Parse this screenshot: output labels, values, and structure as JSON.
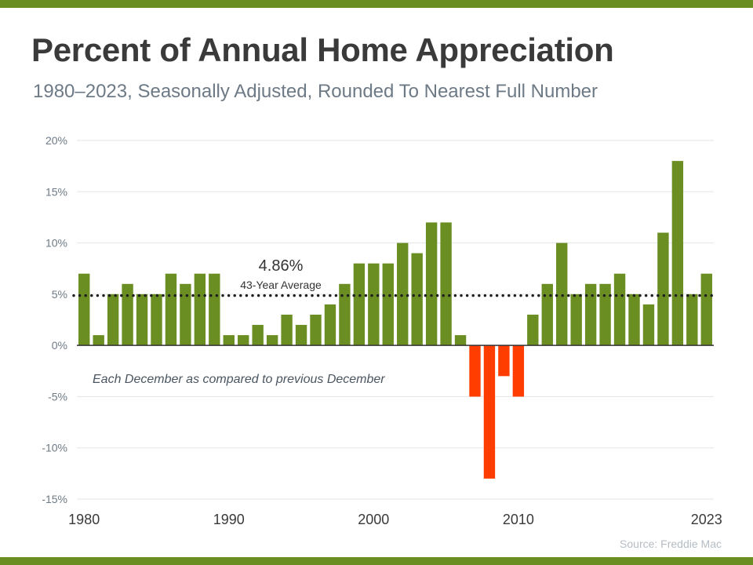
{
  "title": "Percent of Annual Home Appreciation",
  "subtitle": "1980–2023, Seasonally Adjusted, Rounded To Nearest Full Number",
  "source": "Source: Freddie Mac",
  "colors": {
    "brand": "#6b8e23",
    "positive": "#6b8e23",
    "negative": "#ff3d00"
  },
  "chart_data": {
    "type": "bar",
    "categories": [
      "1980",
      "1981",
      "1982",
      "1983",
      "1984",
      "1985",
      "1986",
      "1987",
      "1988",
      "1989",
      "1990",
      "1991",
      "1992",
      "1993",
      "1994",
      "1995",
      "1996",
      "1997",
      "1998",
      "1999",
      "2000",
      "2001",
      "2002",
      "2003",
      "2004",
      "2005",
      "2006",
      "2007",
      "2008",
      "2009",
      "2010",
      "2011",
      "2012",
      "2013",
      "2014",
      "2015",
      "2016",
      "2017",
      "2018",
      "2019",
      "2020",
      "2021",
      "2022",
      "2023"
    ],
    "values": [
      7,
      1,
      5,
      6,
      5,
      5,
      7,
      6,
      7,
      7,
      1,
      1,
      2,
      1,
      3,
      2,
      3,
      4,
      6,
      8,
      8,
      8,
      10,
      9,
      12,
      12,
      1,
      -5,
      -13,
      -3,
      -5,
      3,
      6,
      10,
      5,
      6,
      6,
      7,
      5,
      4,
      11,
      18,
      5,
      7
    ],
    "ylim": [
      -15,
      20
    ],
    "yticks": [
      -15,
      -10,
      -5,
      0,
      5,
      10,
      15,
      20
    ],
    "ytick_labels": [
      "-15%",
      "-10%",
      "-5%",
      "0%",
      "5%",
      "10%",
      "15%",
      "20%"
    ],
    "xtick_labels": [
      "1980",
      "1990",
      "2000",
      "2010",
      "2023"
    ],
    "average": {
      "value": 4.86,
      "label": "4.86%",
      "sublabel": "43-Year Average"
    },
    "annotation": "Each December as compared to previous December",
    "grid": true
  }
}
